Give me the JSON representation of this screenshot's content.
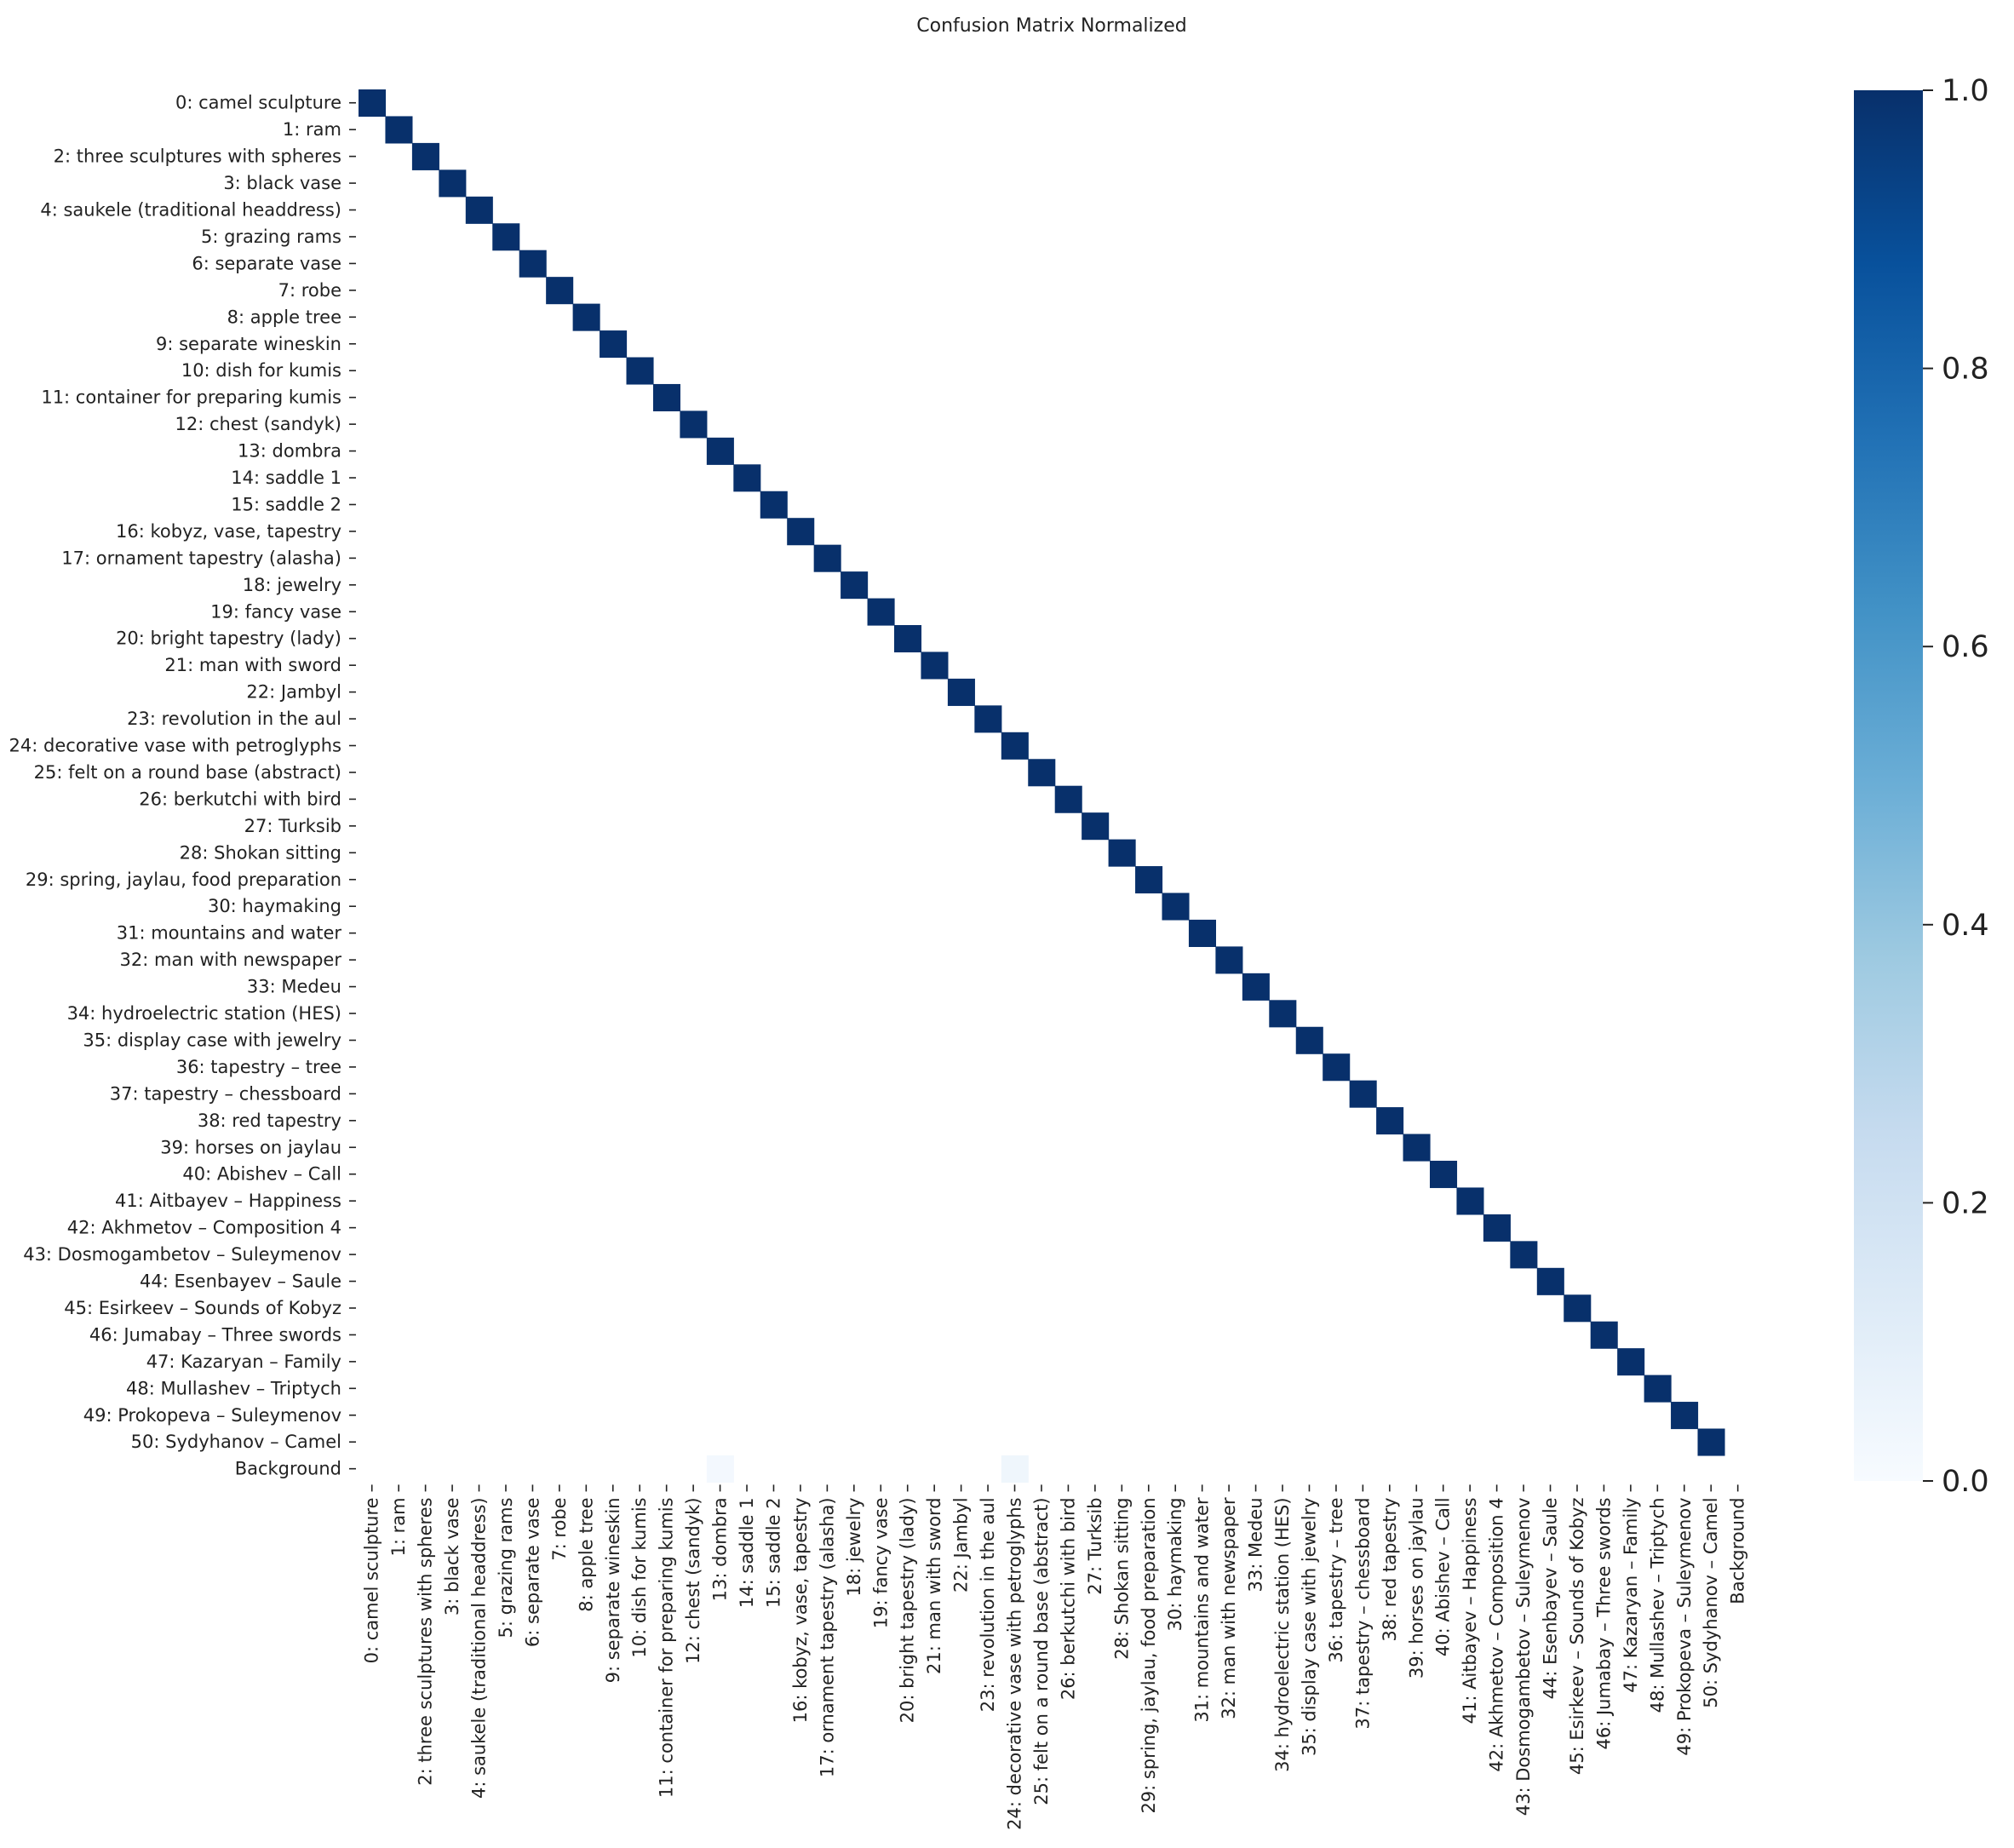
{
  "chart_data": {
    "type": "heatmap",
    "title": "Confusion Matrix Normalized",
    "xlabel": "",
    "ylabel": "",
    "labels": [
      "0: camel sculpture",
      "1: ram",
      "2: three sculptures with spheres",
      "3: black vase",
      "4: saukele (traditional headdress)",
      "5: grazing rams",
      "6: separate vase",
      "7: robe",
      "8: apple tree",
      "9: separate wineskin",
      "10: dish for kumis",
      "11: container for preparing kumis",
      "12: chest (sandyk)",
      "13: dombra",
      "14: saddle 1",
      "15: saddle 2",
      "16: kobyz, vase, tapestry",
      "17: ornament tapestry (alasha)",
      "18: jewelry",
      "19: fancy vase",
      "20: bright tapestry (lady)",
      "21: man with sword",
      "22: Jambyl",
      "23: revolution in the aul",
      "24: decorative vase with petroglyphs",
      "25: felt on a round base (abstract)",
      "26: berkutchi with bird",
      "27: Turksib",
      "28: Shokan sitting",
      "29: spring, jaylau, food preparation",
      "30: haymaking",
      "31: mountains and water",
      "32: man with newspaper",
      "33: Medeu",
      "34: hydroelectric station (HES)",
      "35: display case with jewelry",
      "36: tapestry – tree",
      "37: tapestry – chessboard",
      "38: red tapestry",
      "39: horses on jaylau",
      "40: Abishev – Call",
      "41: Aitbayev – Happiness",
      "42: Akhmetov – Composition 4",
      "43: Dosmogambetov – Suleymenov",
      "44: Esenbayev – Saule",
      "45: Esirkeev – Sounds of Kobyz",
      "46: Jumabay – Three swords",
      "47: Kazaryan – Family",
      "48: Mullashev – Triptych",
      "49: Prokopeva – Suleymenov",
      "50: Sydyhanov – Camel",
      "Background"
    ],
    "diagonal_value": 1.0,
    "diagonal_classes": 51,
    "off_diagonal_cells": [
      {
        "row": 51,
        "col": 13,
        "value": 0.02
      },
      {
        "row": 51,
        "col": 24,
        "value": 0.04
      }
    ],
    "colorbar": {
      "range": [
        0,
        1
      ],
      "ticks": [
        "0.0",
        "0.2",
        "0.4",
        "0.6",
        "0.8",
        "1.0"
      ],
      "colormap": "Blues",
      "colors": [
        "#f7fbff",
        "#deebf7",
        "#c6dbef",
        "#9ecae1",
        "#6baed6",
        "#4292c6",
        "#2171b5",
        "#08519c",
        "#08306b"
      ]
    },
    "grid": false
  }
}
